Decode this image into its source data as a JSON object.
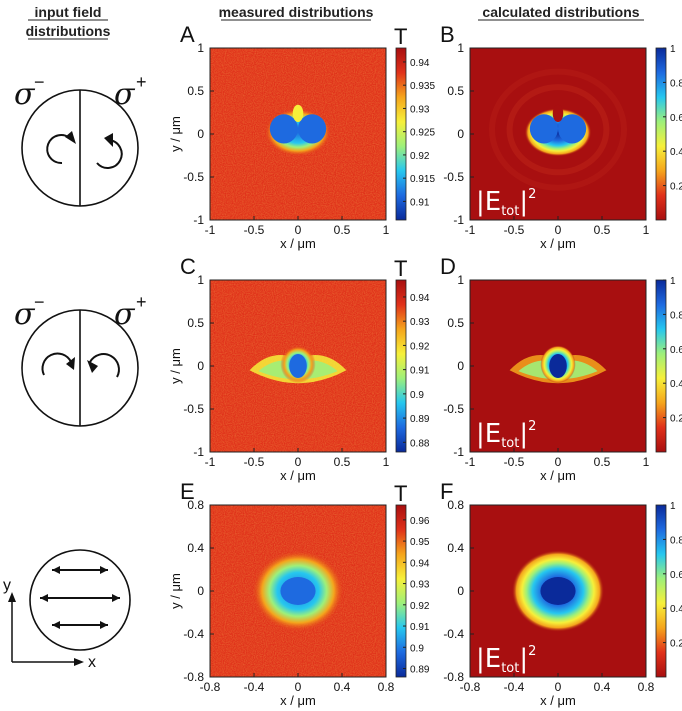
{
  "headers": {
    "input": [
      "input field",
      "distributions"
    ],
    "measured": "measured distributions",
    "calculated": "calculated distributions"
  },
  "inputs": [
    {
      "left_label": "σ",
      "left_sup": "−",
      "right_label": "σ",
      "right_sup": "+"
    },
    {
      "left_label": "σ",
      "left_sup": "−",
      "right_label": "σ",
      "right_sup": "+"
    },
    {
      "axis_y": "y",
      "axis_x": "x"
    }
  ],
  "colorscale": [
    "#0a2a9a",
    "#1e6ae0",
    "#26c7ef",
    "#9ef07a",
    "#f6f03a",
    "#f5a51c",
    "#e0311a",
    "#a80f10"
  ],
  "chart_data": [
    {
      "panel": "A",
      "type": "heatmap",
      "kind": "measured",
      "xlabel": "x / μm",
      "ylabel": "y / μm",
      "xlim": [
        -1,
        1
      ],
      "ylim": [
        -1,
        1
      ],
      "xticks": [
        "-1",
        "-0.5",
        "0",
        "0.5",
        "1"
      ],
      "yticks": [
        "1",
        "0.5",
        "0",
        "-0.5",
        "-1"
      ],
      "colorbar_title": "T",
      "colorbar_ticks": [
        "0.94",
        "0.935",
        "0.93",
        "0.925",
        "0.92",
        "0.915",
        "0.91"
      ],
      "colorbar_range": [
        0.906,
        0.943
      ],
      "pattern": "double-lobe"
    },
    {
      "panel": "B",
      "type": "heatmap",
      "kind": "calculated",
      "xlabel": "x / μm",
      "ylabel": "",
      "xlim": [
        -1,
        1
      ],
      "ylim": [
        -1,
        1
      ],
      "xticks": [
        "-1",
        "-0.5",
        "0",
        "0.5",
        "1"
      ],
      "yticks": [
        "1",
        "0.5",
        "0",
        "-0.5",
        "-1"
      ],
      "colorbar_ticks": [
        "1",
        "0.8",
        "0.6",
        "0.4",
        "0.2"
      ],
      "colorbar_range": [
        0,
        1
      ],
      "annotation": {
        "main": "|E",
        "sub": "tot",
        "close": "|",
        "sup": "2"
      },
      "pattern": "double-lobe"
    },
    {
      "panel": "C",
      "type": "heatmap",
      "kind": "measured",
      "xlabel": "x / μm",
      "ylabel": "y / μm",
      "xlim": [
        -1,
        1
      ],
      "ylim": [
        -1,
        1
      ],
      "xticks": [
        "-1",
        "-0.5",
        "0",
        "0.5",
        "1"
      ],
      "yticks": [
        "1",
        "0.5",
        "0",
        "-0.5",
        "-1"
      ],
      "colorbar_title": "T",
      "colorbar_ticks": [
        "0.94",
        "0.93",
        "0.92",
        "0.91",
        "0.9",
        "0.89",
        "0.88"
      ],
      "colorbar_range": [
        0.876,
        0.947
      ],
      "pattern": "center-peak"
    },
    {
      "panel": "D",
      "type": "heatmap",
      "kind": "calculated",
      "xlabel": "x / μm",
      "ylabel": "",
      "xlim": [
        -1,
        1
      ],
      "ylim": [
        -1,
        1
      ],
      "xticks": [
        "-1",
        "-0.5",
        "0",
        "0.5",
        "1"
      ],
      "yticks": [
        "1",
        "0.5",
        "0",
        "-0.5",
        "-1"
      ],
      "colorbar_ticks": [
        "1",
        "0.8",
        "0.6",
        "0.4",
        "0.2"
      ],
      "colorbar_range": [
        0,
        1
      ],
      "annotation": {
        "main": "|E",
        "sub": "tot",
        "close": "|",
        "sup": "2"
      },
      "pattern": "center-peak"
    },
    {
      "panel": "E",
      "type": "heatmap",
      "kind": "measured",
      "xlabel": "x / μm",
      "ylabel": "y / μm",
      "xlim": [
        -0.8,
        0.8
      ],
      "ylim": [
        -0.8,
        0.8
      ],
      "xticks": [
        "-0.8",
        "-0.4",
        "0",
        "0.4",
        "0.8"
      ],
      "yticks": [
        "0.8",
        "0.4",
        "0",
        "-0.4",
        "-0.8"
      ],
      "colorbar_title": "T",
      "colorbar_ticks": [
        "0.96",
        "0.95",
        "0.94",
        "0.93",
        "0.92",
        "0.91",
        "0.9",
        "0.89"
      ],
      "colorbar_range": [
        0.886,
        0.967
      ],
      "pattern": "single-spot"
    },
    {
      "panel": "F",
      "type": "heatmap",
      "kind": "calculated",
      "xlabel": "x / μm",
      "ylabel": "",
      "xlim": [
        -0.8,
        0.8
      ],
      "ylim": [
        -0.8,
        0.8
      ],
      "xticks": [
        "-0.8",
        "-0.4",
        "0",
        "0.4",
        "0.8"
      ],
      "yticks": [
        "0.8",
        "0.4",
        "0",
        "-0.4",
        "-0.8"
      ],
      "colorbar_ticks": [
        "1",
        "0.8",
        "0.6",
        "0.4",
        "0.2"
      ],
      "colorbar_range": [
        0,
        1
      ],
      "annotation": {
        "main": "|E",
        "sub": "tot",
        "close": "|",
        "sup": "2"
      },
      "pattern": "single-spot"
    }
  ]
}
